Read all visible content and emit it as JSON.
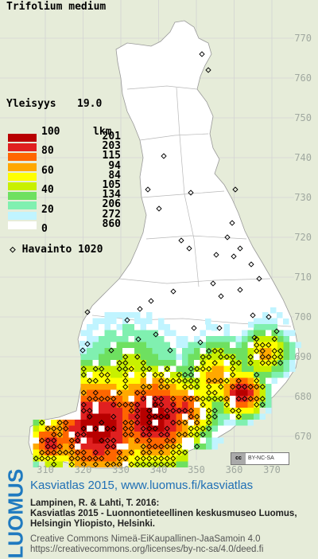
{
  "species": "Trifolium medium",
  "frequency": {
    "label": "Yleisyys",
    "value": "19.0"
  },
  "legend": {
    "count_header": "lkm",
    "percent_labels": [
      "100",
      "80",
      "60",
      "40",
      "20",
      "0"
    ],
    "classes": [
      {
        "color": "#b80000",
        "count": "201"
      },
      {
        "color": "#e02020",
        "count": "203"
      },
      {
        "color": "#ff6600",
        "count": "115"
      },
      {
        "color": "#ffa800",
        "count": "94"
      },
      {
        "color": "#ffff00",
        "count": "84"
      },
      {
        "color": "#c8f000",
        "count": "105"
      },
      {
        "color": "#6ee060",
        "count": "134"
      },
      {
        "color": "#80f0b0",
        "count": "206"
      },
      {
        "color": "#c0f4ff",
        "count": "272"
      },
      {
        "color": "#ffffff",
        "count": "860"
      }
    ]
  },
  "observations": {
    "symbol": "◇",
    "label": "Havainto",
    "count": "1020"
  },
  "grid": {
    "y_labels": [
      "770",
      "760",
      "750",
      "740",
      "730",
      "720",
      "710",
      "700",
      "690",
      "680",
      "670"
    ],
    "x_labels": [
      "310",
      "320",
      "330",
      "340",
      "350",
      "360",
      "370"
    ]
  },
  "footer": {
    "logo_text": "LUOMUS",
    "link_text": "Kasviatlas 2015, www.luomus.fi/kasviatlas",
    "citation_line1": "Lampinen, R. & Lahti, T. 2016:",
    "citation_line2": "Kasviatlas 2015 - Luonnontieteellinen keskusmuseo Luomus,",
    "citation_line3": "Helsingin Yliopisto, Helsinki.",
    "license_line1": "Creative Commons Nimeä-EiKaupallinen-JaaSamoin 4.0",
    "license_line2": "https://creativecommons.org/licenses/by-nc-sa/4.0/deed.fi",
    "cc_badge_icon": "cc",
    "cc_badge_text": "BY-NC-SA"
  },
  "colors": {
    "background": "#e6ecd9",
    "land": "#ffffff",
    "grid": "#cfcfcf",
    "accent": "#1f7ac0"
  }
}
